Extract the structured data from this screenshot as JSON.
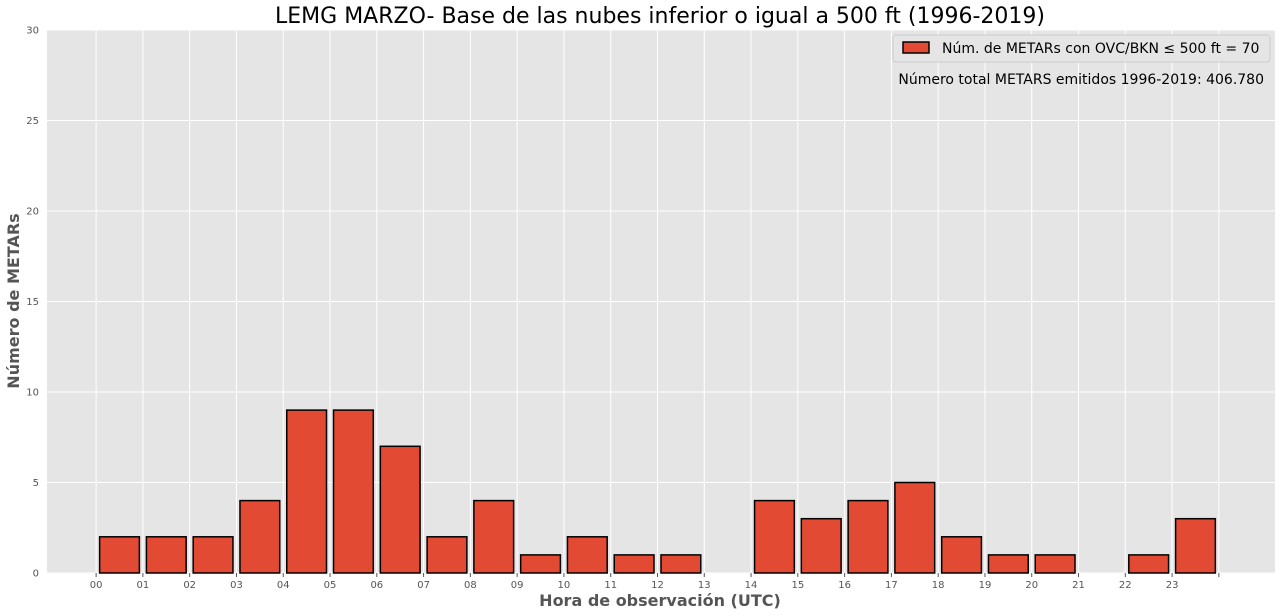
{
  "chart_data": {
    "type": "bar",
    "title": "LEMG MARZO- Base de las nubes inferior o igual a 500 ft (1996-2019)",
    "xlabel": "Hora de observación (UTC)",
    "ylabel": "Número de METARs",
    "categories": [
      "00",
      "01",
      "02",
      "03",
      "04",
      "05",
      "06",
      "07",
      "08",
      "09",
      "10",
      "11",
      "12",
      "13",
      "14",
      "15",
      "16",
      "17",
      "18",
      "19",
      "20",
      "21",
      "22",
      "23"
    ],
    "series": [
      {
        "name": "Núm. de METARs con OVC/BKN ≤ 500 ft = 70",
        "values": [
          2,
          2,
          2,
          4,
          9,
          9,
          7,
          2,
          4,
          1,
          2,
          1,
          1,
          0,
          4,
          3,
          4,
          5,
          2,
          1,
          1,
          0,
          1,
          3
        ]
      }
    ],
    "ylim": [
      0,
      30
    ],
    "yticks": [
      0,
      5,
      10,
      15,
      20,
      25,
      30
    ],
    "grid": true,
    "legend_position": "top-right",
    "annotation": "Número total METARS emitidos 1996-2019:  406.780",
    "colors": {
      "bar_fill": "#E24A33",
      "bar_edge": "#000000",
      "plot_background": "#E5E5E5",
      "grid": "#FFFFFF"
    }
  }
}
